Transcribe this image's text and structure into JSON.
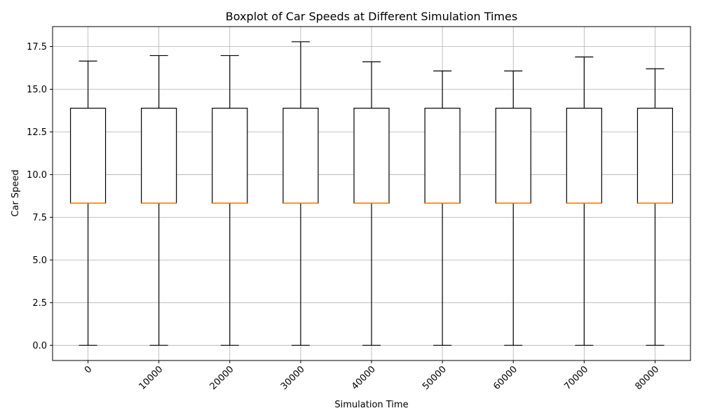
{
  "chart_data": {
    "type": "boxplot",
    "title": "Boxplot of Car Speeds at Different Simulation Times",
    "xlabel": "Simulation Time",
    "ylabel": "Car Speed",
    "categories": [
      "0",
      "10000",
      "20000",
      "30000",
      "40000",
      "50000",
      "60000",
      "70000",
      "80000"
    ],
    "boxes": [
      {
        "whisker_low": 0.0,
        "q1": 8.33,
        "median": 8.33,
        "q3": 13.89,
        "whisker_high": 16.65
      },
      {
        "whisker_low": 0.0,
        "q1": 8.33,
        "median": 8.33,
        "q3": 13.89,
        "whisker_high": 16.97
      },
      {
        "whisker_low": 0.0,
        "q1": 8.33,
        "median": 8.33,
        "q3": 13.89,
        "whisker_high": 16.97
      },
      {
        "whisker_low": 0.0,
        "q1": 8.33,
        "median": 8.33,
        "q3": 13.89,
        "whisker_high": 17.78
      },
      {
        "whisker_low": 0.0,
        "q1": 8.33,
        "median": 8.33,
        "q3": 13.89,
        "whisker_high": 16.61
      },
      {
        "whisker_low": 0.0,
        "q1": 8.33,
        "median": 8.33,
        "q3": 13.89,
        "whisker_high": 16.07
      },
      {
        "whisker_low": 0.0,
        "q1": 8.33,
        "median": 8.33,
        "q3": 13.89,
        "whisker_high": 16.07
      },
      {
        "whisker_low": 0.0,
        "q1": 8.33,
        "median": 8.33,
        "q3": 13.89,
        "whisker_high": 16.89
      },
      {
        "whisker_low": 0.0,
        "q1": 8.33,
        "median": 8.33,
        "q3": 13.89,
        "whisker_high": 16.2
      }
    ],
    "yticks": [
      "0.0",
      "2.5",
      "5.0",
      "7.5",
      "10.0",
      "12.5",
      "15.0",
      "17.5"
    ],
    "ylim": [
      -0.89,
      18.67
    ],
    "grid": true,
    "xtick_rotation": 45,
    "colors": {
      "box": "#000000",
      "median": "#ff7f0e",
      "grid": "#b0b0b0"
    }
  }
}
